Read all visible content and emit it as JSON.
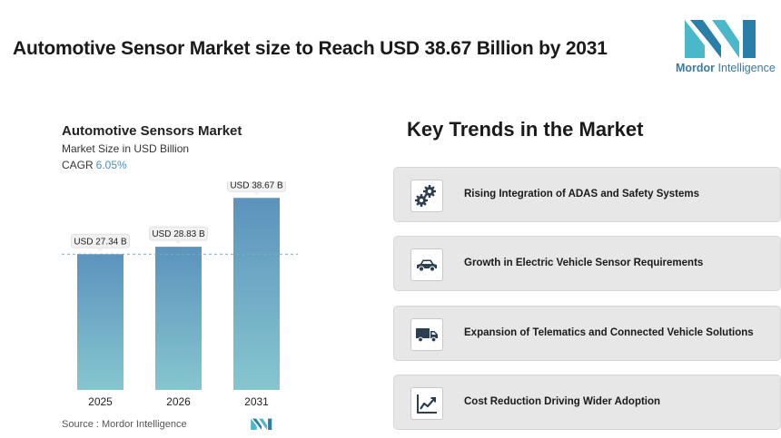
{
  "header": {
    "title": "Automotive Sensor Market size to Reach USD 38.67 Billion by 2031"
  },
  "brand": {
    "name_bold": "Mordor",
    "name_regular": " Intelligence",
    "logo_icon": "mordor-intelligence-logo-icon",
    "colors": [
      "#4bb8c9",
      "#2a7fa8"
    ]
  },
  "chart_info": {
    "title": "Automotive Sensors Market",
    "subtitle": "Market Size in USD Billion",
    "cagr_label": "CAGR",
    "cagr_value": "6.05%"
  },
  "chart_data": {
    "type": "bar",
    "title": "Automotive Sensors Market",
    "ylabel": "Market Size in USD Billion",
    "categories": [
      "2025",
      "2026",
      "2031"
    ],
    "values": [
      27.34,
      28.83,
      38.67
    ],
    "data_labels": [
      "USD 27.34 B",
      "USD 28.83 B",
      "USD 38.67 B"
    ],
    "reference_line": 27.34,
    "ylim": [
      0,
      42
    ],
    "grid": false,
    "legend": "none",
    "bar_color_top": "#5b93bd",
    "bar_color_bottom": "#86c6cf"
  },
  "source": {
    "text": "Source :  Mordor Intelligence"
  },
  "trends": {
    "title": "Key Trends in the Market",
    "items": [
      {
        "label": "Rising Integration of ADAS and Safety Systems",
        "icon": "gears-icon"
      },
      {
        "label": "Growth in Electric Vehicle Sensor Requirements",
        "icon": "car-icon"
      },
      {
        "label": "Expansion of Telematics and Connected Vehicle Solutions",
        "icon": "truck-icon"
      },
      {
        "label": "Cost Reduction Driving Wider Adoption",
        "icon": "line-chart-icon"
      }
    ]
  }
}
